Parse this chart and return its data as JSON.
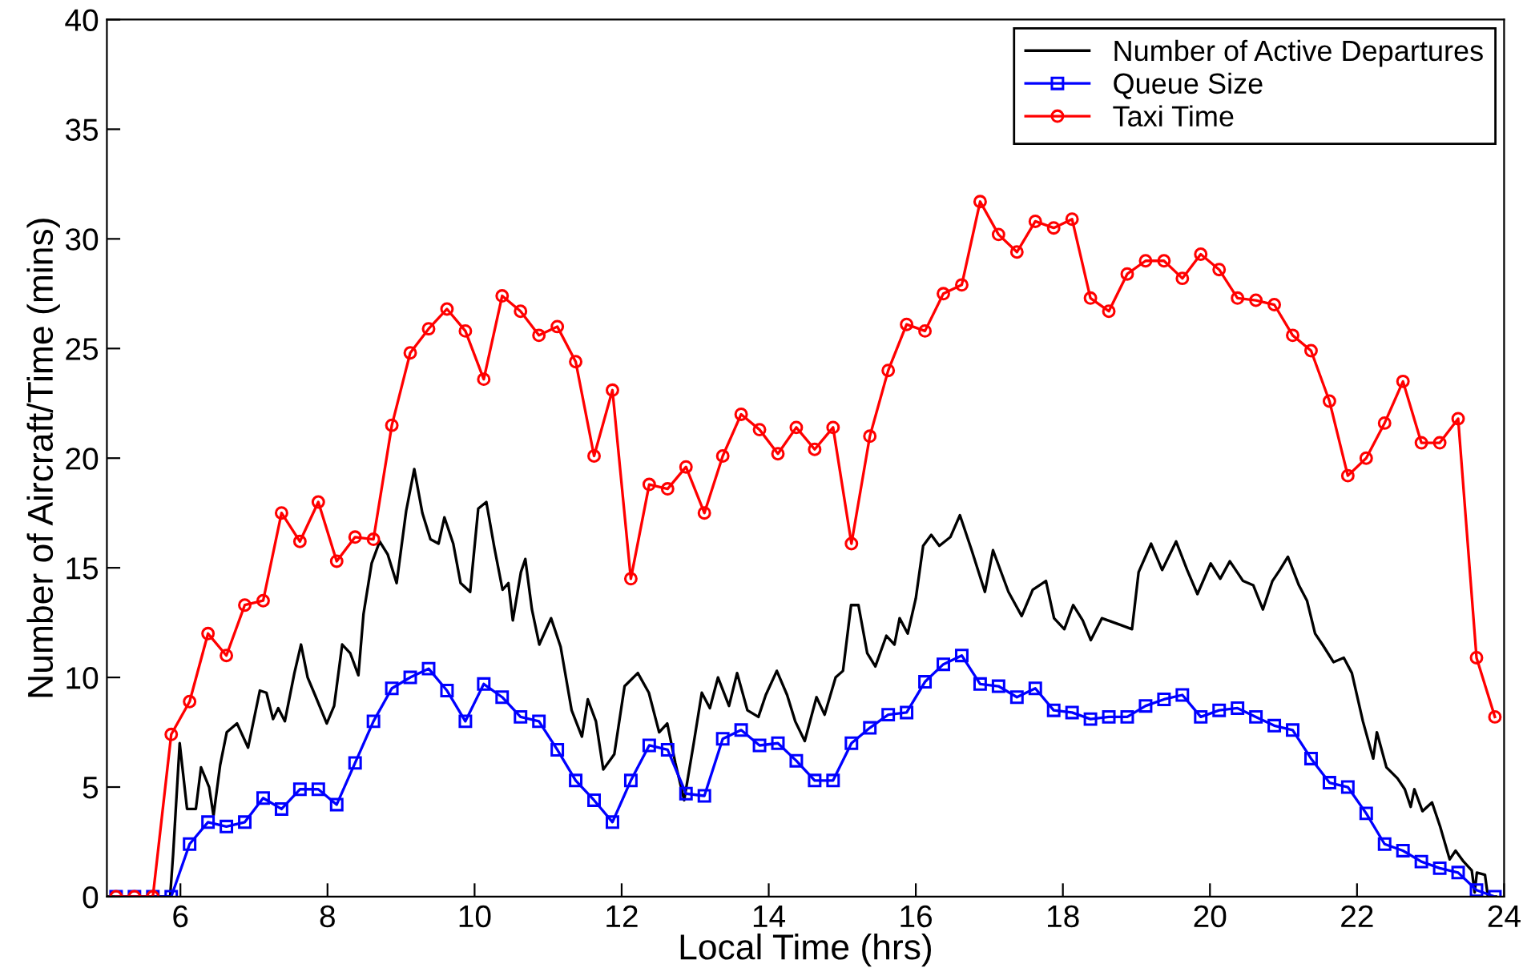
{
  "chart_data": {
    "type": "line",
    "xlabel": "Local Time (hrs)",
    "ylabel": "Number of Aircraft/Time (mins)",
    "xlim": [
      5,
      24
    ],
    "ylim": [
      0,
      40
    ],
    "xticks": [
      6,
      8,
      10,
      12,
      14,
      16,
      18,
      20,
      22,
      24
    ],
    "yticks": [
      0,
      5,
      10,
      15,
      20,
      25,
      30,
      35,
      40
    ],
    "grid": false,
    "legend": "top right",
    "series": [
      {
        "name": "Number of Active Departures",
        "color": "#000000",
        "marker": "none",
        "x": [
          5.0,
          5.86,
          5.9,
          5.99,
          6.09,
          6.21,
          6.28,
          6.39,
          6.45,
          6.54,
          6.63,
          6.77,
          6.92,
          7.08,
          7.17,
          7.26,
          7.33,
          7.42,
          7.55,
          7.64,
          7.73,
          7.83,
          7.99,
          8.09,
          8.2,
          8.31,
          8.42,
          8.49,
          8.6,
          8.71,
          8.82,
          8.94,
          9.07,
          9.18,
          9.29,
          9.4,
          9.51,
          9.59,
          9.71,
          9.81,
          9.94,
          10.05,
          10.16,
          10.27,
          10.38,
          10.46,
          10.52,
          10.63,
          10.69,
          10.78,
          10.88,
          11.04,
          11.17,
          11.32,
          11.46,
          11.54,
          11.65,
          11.75,
          11.9,
          12.04,
          12.22,
          12.37,
          12.51,
          12.62,
          12.73,
          12.85,
          12.98,
          13.09,
          13.2,
          13.31,
          13.46,
          13.57,
          13.71,
          13.86,
          13.96,
          14.11,
          14.25,
          14.36,
          14.49,
          14.65,
          14.76,
          14.91,
          15.01,
          15.12,
          15.22,
          15.34,
          15.45,
          15.6,
          15.71,
          15.78,
          15.89,
          16.0,
          16.1,
          16.21,
          16.32,
          16.47,
          16.6,
          16.76,
          16.94,
          17.05,
          17.26,
          17.44,
          17.59,
          17.77,
          17.88,
          18.02,
          18.14,
          18.27,
          18.38,
          18.53,
          18.78,
          18.94,
          19.03,
          19.2,
          19.35,
          19.54,
          19.69,
          19.83,
          20.01,
          20.14,
          20.27,
          20.45,
          20.59,
          20.72,
          20.85,
          20.95,
          21.06,
          21.21,
          21.32,
          21.43,
          21.53,
          21.68,
          21.82,
          21.93,
          22.08,
          22.22,
          22.27,
          22.4,
          22.55,
          22.65,
          22.73,
          22.78,
          22.89,
          23.02,
          23.13,
          23.26,
          23.34,
          23.45,
          23.56,
          23.6,
          23.63,
          23.74,
          23.78,
          23.89
        ],
        "values": [
          0,
          0,
          1.9,
          7.0,
          4.0,
          4.0,
          5.9,
          5.0,
          3.7,
          6.0,
          7.5,
          7.9,
          6.8,
          9.4,
          9.3,
          8.1,
          8.6,
          8.0,
          10.2,
          11.5,
          10.0,
          9.2,
          7.9,
          8.7,
          11.5,
          11.1,
          10.1,
          12.9,
          15.2,
          16.2,
          15.6,
          14.3,
          17.6,
          19.5,
          17.5,
          16.3,
          16.1,
          17.3,
          16.1,
          14.3,
          13.9,
          17.7,
          18.0,
          15.9,
          14.0,
          14.3,
          12.6,
          14.8,
          15.4,
          13.1,
          11.5,
          12.7,
          11.4,
          8.5,
          7.3,
          9.0,
          8.0,
          5.8,
          6.5,
          9.6,
          10.2,
          9.3,
          7.5,
          7.9,
          6.1,
          4.4,
          7.0,
          9.3,
          8.6,
          10.0,
          8.7,
          10.2,
          8.5,
          8.2,
          9.2,
          10.3,
          9.2,
          8.0,
          7.1,
          9.1,
          8.3,
          10.0,
          10.3,
          13.3,
          13.3,
          11.1,
          10.5,
          11.9,
          11.5,
          12.7,
          12.0,
          13.6,
          16.0,
          16.5,
          16.0,
          16.4,
          17.4,
          15.8,
          13.9,
          15.8,
          13.9,
          12.8,
          14.0,
          14.4,
          12.7,
          12.2,
          13.3,
          12.6,
          11.7,
          12.7,
          12.4,
          12.2,
          14.8,
          16.1,
          14.9,
          16.2,
          14.9,
          13.8,
          15.2,
          14.5,
          15.3,
          14.4,
          14.2,
          13.1,
          14.4,
          14.9,
          15.5,
          14.2,
          13.5,
          12.0,
          11.5,
          10.7,
          10.9,
          10.2,
          8.0,
          6.3,
          7.5,
          5.9,
          5.4,
          4.9,
          4.1,
          4.9,
          3.9,
          4.3,
          3.2,
          1.7,
          2.1,
          1.6,
          1.2,
          0.2,
          1.1,
          1.0,
          0,
          0
        ]
      },
      {
        "name": "Queue Size",
        "color": "#0000ff",
        "marker": "square",
        "x": [
          5.125,
          5.375,
          5.625,
          5.875,
          6.125,
          6.375,
          6.625,
          6.875,
          7.125,
          7.375,
          7.625,
          7.875,
          8.125,
          8.375,
          8.625,
          8.875,
          9.125,
          9.375,
          9.625,
          9.875,
          10.125,
          10.375,
          10.625,
          10.875,
          11.125,
          11.375,
          11.625,
          11.875,
          12.125,
          12.375,
          12.625,
          12.875,
          13.125,
          13.375,
          13.625,
          13.875,
          14.125,
          14.375,
          14.625,
          14.875,
          15.125,
          15.375,
          15.625,
          15.875,
          16.125,
          16.375,
          16.625,
          16.875,
          17.125,
          17.375,
          17.625,
          17.875,
          18.125,
          18.375,
          18.625,
          18.875,
          19.125,
          19.375,
          19.625,
          19.875,
          20.125,
          20.375,
          20.625,
          20.875,
          21.125,
          21.375,
          21.625,
          21.875,
          22.125,
          22.375,
          22.625,
          22.875,
          23.125,
          23.375,
          23.625,
          23.875
        ],
        "values": [
          0,
          0,
          0,
          0,
          2.4,
          3.4,
          3.2,
          3.4,
          4.5,
          4.0,
          4.9,
          4.9,
          4.2,
          6.1,
          8.0,
          9.5,
          10.0,
          10.4,
          9.4,
          8.0,
          9.7,
          9.1,
          8.2,
          8.0,
          6.7,
          5.3,
          4.4,
          3.4,
          5.3,
          6.9,
          6.7,
          4.7,
          4.6,
          7.2,
          7.6,
          6.9,
          7.0,
          6.2,
          5.3,
          5.3,
          7.0,
          7.7,
          8.3,
          8.4,
          9.8,
          10.6,
          11.0,
          9.7,
          9.6,
          9.1,
          9.5,
          8.5,
          8.4,
          8.1,
          8.2,
          8.2,
          8.7,
          9.0,
          9.2,
          8.2,
          8.5,
          8.6,
          8.2,
          7.8,
          7.6,
          6.3,
          5.2,
          5.0,
          3.8,
          2.4,
          2.1,
          1.6,
          1.3,
          1.1,
          0.3,
          0
        ]
      },
      {
        "name": "Taxi Time",
        "color": "#ff0000",
        "marker": "circle",
        "x": [
          5.125,
          5.375,
          5.625,
          5.875,
          6.125,
          6.375,
          6.625,
          6.875,
          7.125,
          7.375,
          7.625,
          7.875,
          8.125,
          8.375,
          8.625,
          8.875,
          9.125,
          9.375,
          9.625,
          9.875,
          10.125,
          10.375,
          10.625,
          10.875,
          11.125,
          11.375,
          11.625,
          11.875,
          12.125,
          12.375,
          12.625,
          12.875,
          13.125,
          13.375,
          13.625,
          13.875,
          14.125,
          14.375,
          14.625,
          14.875,
          15.125,
          15.375,
          15.625,
          15.875,
          16.125,
          16.375,
          16.625,
          16.875,
          17.125,
          17.375,
          17.625,
          17.875,
          18.125,
          18.375,
          18.625,
          18.875,
          19.125,
          19.375,
          19.625,
          19.875,
          20.125,
          20.375,
          20.625,
          20.875,
          21.125,
          21.375,
          21.625,
          21.875,
          22.125,
          22.375,
          22.625,
          22.875,
          23.125,
          23.375,
          23.625,
          23.875
        ],
        "values": [
          0,
          0,
          0,
          7.4,
          8.9,
          12.0,
          11.0,
          13.3,
          13.5,
          17.5,
          16.2,
          18.0,
          15.3,
          16.4,
          16.3,
          21.5,
          24.8,
          25.9,
          26.8,
          25.8,
          23.6,
          27.4,
          26.7,
          25.6,
          26.0,
          24.4,
          20.1,
          23.1,
          14.5,
          18.8,
          18.6,
          19.6,
          17.5,
          20.1,
          22.0,
          21.3,
          20.2,
          21.4,
          20.4,
          21.4,
          16.1,
          21.0,
          24.0,
          26.1,
          25.8,
          27.5,
          27.9,
          31.7,
          30.2,
          29.4,
          30.8,
          30.5,
          30.9,
          27.3,
          26.7,
          28.4,
          29.0,
          29.0,
          28.2,
          29.3,
          28.6,
          27.3,
          27.2,
          27.0,
          25.6,
          24.9,
          22.6,
          19.2,
          20.0,
          21.6,
          23.5,
          20.7,
          20.7,
          21.8,
          10.9,
          8.2
        ]
      }
    ]
  }
}
